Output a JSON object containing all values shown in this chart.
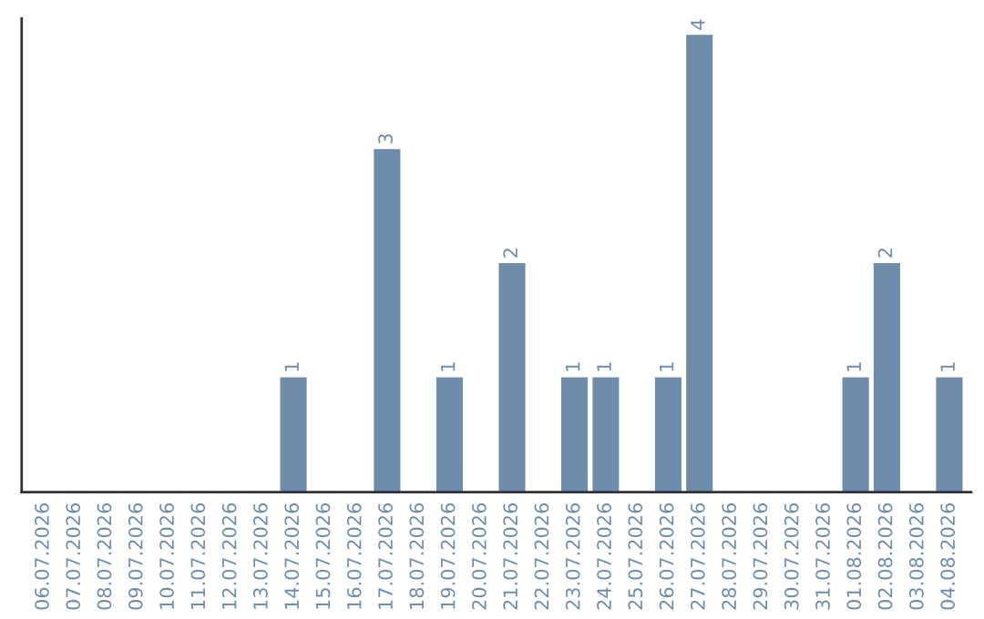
{
  "chart_data": {
    "type": "bar",
    "categories": [
      "06.07.2026",
      "07.07.2026",
      "08.07.2026",
      "09.07.2026",
      "10.07.2026",
      "11.07.2026",
      "12.07.2026",
      "13.07.2026",
      "14.07.2026",
      "15.07.2026",
      "16.07.2026",
      "17.07.2026",
      "18.07.2026",
      "19.07.2026",
      "20.07.2026",
      "21.07.2026",
      "22.07.2026",
      "23.07.2026",
      "24.07.2026",
      "25.07.2026",
      "26.07.2026",
      "27.07.2026",
      "28.07.2026",
      "29.07.2026",
      "30.07.2026",
      "31.07.2026",
      "01.08.2026",
      "02.08.2026",
      "03.08.2026",
      "04.08.2026"
    ],
    "values": [
      0,
      0,
      0,
      0,
      0,
      0,
      0,
      0,
      1,
      0,
      0,
      3,
      0,
      1,
      0,
      2,
      0,
      1,
      1,
      0,
      1,
      4,
      0,
      0,
      0,
      0,
      1,
      2,
      0,
      1
    ],
    "value_labels": [
      null,
      null,
      null,
      null,
      null,
      null,
      null,
      null,
      "1",
      null,
      null,
      "3",
      null,
      "1",
      null,
      "2",
      null,
      "1",
      "1",
      null,
      "1",
      "4",
      null,
      null,
      null,
      null,
      "1",
      "2",
      null,
      "1"
    ],
    "color": "#6f8dab",
    "ylim": [
      0,
      4.15
    ],
    "tick_labels": "x",
    "grid": false,
    "legend": false
  }
}
